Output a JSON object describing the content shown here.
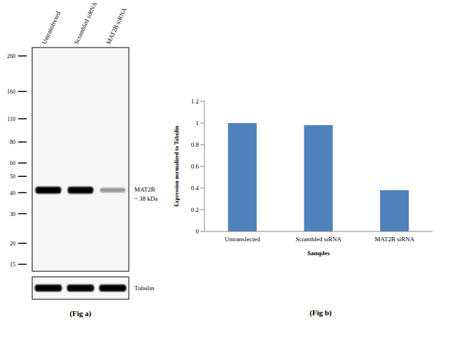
{
  "blot": {
    "caption": "(Fig a)",
    "lanes": [
      "Untransfected",
      "Scrambled siRNA",
      "MAT2B siRNA"
    ],
    "markers": [
      260,
      160,
      110,
      80,
      60,
      50,
      40,
      30,
      20,
      15
    ],
    "band_label": "MAT2B",
    "band_size": "~ 38 kDa",
    "loading_control": "Tubulin"
  },
  "chart_data": {
    "type": "bar",
    "caption": "(Fig b)",
    "x_label": "Samples",
    "y_label": "Expression normalized to Tubulin",
    "categories": [
      "Untransfected",
      "Scrambled siRNA",
      "MAT2B siRNA"
    ],
    "values": [
      1,
      0.98,
      0.38
    ],
    "color": "#4f81bd",
    "ylim": [
      0,
      1.2
    ],
    "yticks": [
      0,
      0.2,
      0.4,
      0.6,
      0.8,
      1,
      1.2
    ],
    "grid": false
  }
}
